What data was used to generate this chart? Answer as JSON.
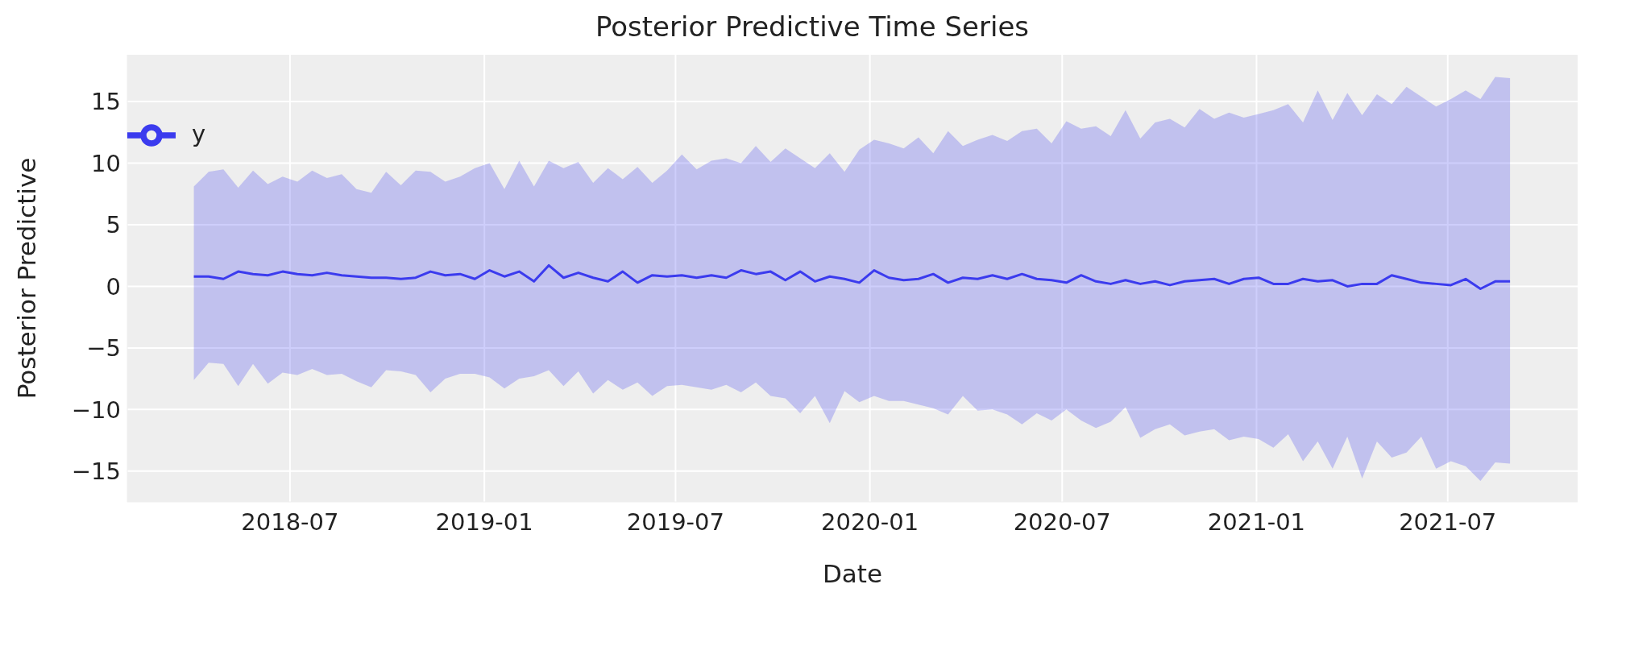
{
  "chart_data": {
    "type": "line",
    "title": "Posterior Predictive Time Series",
    "xlabel": "Date",
    "ylabel": "Posterior Predictive",
    "x": [
      "2018-04-01",
      "2018-04-15",
      "2018-04-29",
      "2018-05-13",
      "2018-05-27",
      "2018-06-10",
      "2018-06-24",
      "2018-07-08",
      "2018-07-22",
      "2018-08-05",
      "2018-08-19",
      "2018-09-02",
      "2018-09-16",
      "2018-09-30",
      "2018-10-14",
      "2018-10-28",
      "2018-11-11",
      "2018-11-25",
      "2018-12-09",
      "2018-12-23",
      "2019-01-06",
      "2019-01-20",
      "2019-02-03",
      "2019-02-17",
      "2019-03-03",
      "2019-03-17",
      "2019-03-31",
      "2019-04-14",
      "2019-04-28",
      "2019-05-12",
      "2019-05-26",
      "2019-06-09",
      "2019-06-23",
      "2019-07-07",
      "2019-07-21",
      "2019-08-04",
      "2019-08-18",
      "2019-09-01",
      "2019-09-15",
      "2019-09-29",
      "2019-10-13",
      "2019-10-27",
      "2019-11-10",
      "2019-11-24",
      "2019-12-08",
      "2019-12-22",
      "2020-01-05",
      "2020-01-19",
      "2020-02-02",
      "2020-02-16",
      "2020-03-01",
      "2020-03-15",
      "2020-03-29",
      "2020-04-12",
      "2020-04-26",
      "2020-05-10",
      "2020-05-24",
      "2020-06-07",
      "2020-06-21",
      "2020-07-05",
      "2020-07-19",
      "2020-08-02",
      "2020-08-16",
      "2020-08-30",
      "2020-09-13",
      "2020-09-27",
      "2020-10-11",
      "2020-10-25",
      "2020-11-08",
      "2020-11-22",
      "2020-12-06",
      "2020-12-20",
      "2021-01-03",
      "2021-01-17",
      "2021-01-31",
      "2021-02-14",
      "2021-02-28",
      "2021-03-14",
      "2021-03-28",
      "2021-04-11",
      "2021-04-25",
      "2021-05-09",
      "2021-05-23",
      "2021-06-06",
      "2021-06-20",
      "2021-07-04",
      "2021-07-18",
      "2021-08-01",
      "2021-08-15",
      "2021-08-29"
    ],
    "series": [
      {
        "name": "y",
        "color": "#3b3bee",
        "values": [
          0.8,
          0.8,
          0.6,
          1.2,
          1.0,
          0.9,
          1.2,
          1.0,
          0.9,
          1.1,
          0.9,
          0.8,
          0.7,
          0.7,
          0.6,
          0.7,
          1.2,
          0.9,
          1.0,
          0.6,
          1.3,
          0.8,
          1.2,
          0.4,
          1.7,
          0.7,
          1.1,
          0.7,
          0.4,
          1.2,
          0.3,
          0.9,
          0.8,
          0.9,
          0.7,
          0.9,
          0.7,
          1.3,
          1.0,
          1.2,
          0.5,
          1.2,
          0.4,
          0.8,
          0.6,
          0.3,
          1.3,
          0.7,
          0.5,
          0.6,
          1.0,
          0.3,
          0.7,
          0.6,
          0.9,
          0.6,
          1.0,
          0.6,
          0.5,
          0.3,
          0.9,
          0.4,
          0.2,
          0.5,
          0.2,
          0.4,
          0.1,
          0.4,
          0.5,
          0.6,
          0.2,
          0.6,
          0.7,
          0.2,
          0.2,
          0.6,
          0.4,
          0.5,
          0.0,
          0.2,
          0.2,
          0.9,
          0.6,
          0.3,
          0.2,
          0.1,
          0.6,
          -0.2,
          0.4,
          0.4
        ],
        "lower": [
          -7.6,
          -6.2,
          -6.3,
          -8.1,
          -6.3,
          -7.9,
          -7.0,
          -7.2,
          -6.7,
          -7.2,
          -7.1,
          -7.7,
          -8.2,
          -6.8,
          -6.9,
          -7.2,
          -8.6,
          -7.5,
          -7.1,
          -7.1,
          -7.4,
          -8.3,
          -7.5,
          -7.3,
          -6.8,
          -8.1,
          -6.9,
          -8.7,
          -7.6,
          -8.4,
          -7.8,
          -8.9,
          -8.1,
          -8.0,
          -8.2,
          -8.4,
          -8.0,
          -8.6,
          -7.8,
          -8.9,
          -9.1,
          -10.3,
          -8.9,
          -11.1,
          -8.5,
          -9.4,
          -8.9,
          -9.3,
          -9.3,
          -9.6,
          -9.9,
          -10.4,
          -8.9,
          -10.1,
          -10.0,
          -10.4,
          -11.2,
          -10.3,
          -10.9,
          -10.0,
          -10.9,
          -11.5,
          -11.0,
          -9.8,
          -12.3,
          -11.6,
          -11.2,
          -12.1,
          -11.8,
          -11.6,
          -12.5,
          -12.2,
          -12.4,
          -13.1,
          -12.0,
          -14.2,
          -12.6,
          -14.8,
          -12.2,
          -15.6,
          -12.6,
          -13.9,
          -13.5,
          -12.2,
          -14.8,
          -14.2,
          -14.6,
          -15.8,
          -14.3,
          -14.4
        ],
        "upper": [
          8.1,
          9.3,
          9.5,
          8.0,
          9.4,
          8.3,
          8.9,
          8.5,
          9.4,
          8.8,
          9.1,
          7.9,
          7.6,
          9.3,
          8.2,
          9.4,
          9.3,
          8.5,
          8.9,
          9.6,
          10.0,
          7.9,
          10.2,
          8.1,
          10.2,
          9.6,
          10.1,
          8.4,
          9.6,
          8.7,
          9.7,
          8.4,
          9.4,
          10.7,
          9.5,
          10.2,
          10.4,
          10.0,
          11.4,
          10.1,
          11.2,
          10.4,
          9.6,
          10.8,
          9.3,
          11.1,
          11.9,
          11.6,
          11.2,
          12.1,
          10.8,
          12.6,
          11.4,
          11.9,
          12.3,
          11.8,
          12.6,
          12.8,
          11.6,
          13.4,
          12.8,
          13.0,
          12.2,
          14.3,
          12.0,
          13.3,
          13.6,
          12.9,
          14.4,
          13.6,
          14.1,
          13.7,
          14.0,
          14.3,
          14.8,
          13.3,
          15.9,
          13.5,
          15.7,
          13.9,
          15.6,
          14.8,
          16.2,
          15.4,
          14.6,
          15.2,
          15.9,
          15.2,
          17.0,
          16.9
        ]
      }
    ],
    "xlim": [
      "2018-01-28",
      "2021-11-01"
    ],
    "xticks": [
      "2018-07",
      "2019-01",
      "2019-07",
      "2020-01",
      "2020-07",
      "2021-01",
      "2021-07"
    ],
    "ylim": [
      -17.5,
      18.8
    ],
    "yticks": [
      -15,
      -10,
      -5,
      0,
      5,
      10,
      15
    ],
    "grid": true,
    "legend": "top left"
  }
}
